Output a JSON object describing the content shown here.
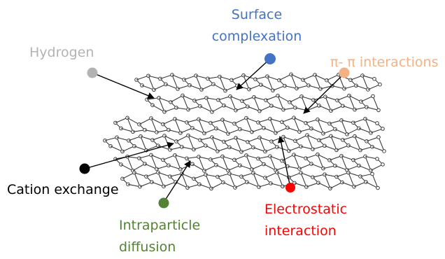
{
  "labels": {
    "hydrogen": "Hydrogen",
    "surface_line1": "Surface",
    "surface_line2": "complexation",
    "pi_pi": "π- π interactions",
    "cation_exchange": "Cation exchange",
    "intraparticle_line1": "Intraparticle",
    "intraparticle_line2": "diffusion",
    "electrostatic_line1": "Electrostatic",
    "electrostatic_line2": "interaction"
  },
  "colors": {
    "hydrogen": "#b3b3b3",
    "surface": "#4472c4",
    "pi_pi": "#f4b183",
    "cation": "#000000",
    "intraparticle": "#548235",
    "electrostatic": "#ff0000",
    "lattice": "#3a3a3a"
  }
}
